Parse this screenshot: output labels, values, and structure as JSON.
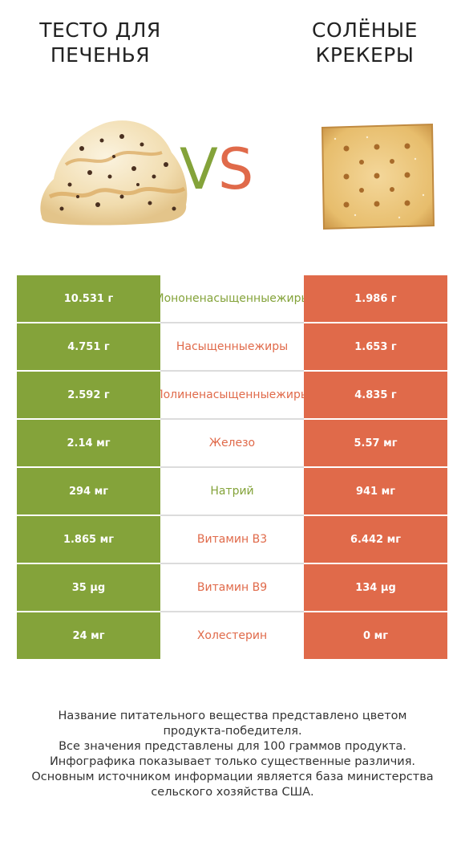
{
  "left_food": {
    "title_lines": [
      "ТЕСТО ДЛЯ",
      "ПЕЧЕНЬЯ"
    ]
  },
  "right_food": {
    "title_lines": [
      "СОЛЁНЫЕ",
      "КРЕКЕРЫ"
    ]
  },
  "vs": {
    "v": "V",
    "s": "S"
  },
  "colors": {
    "left": "#84a33a",
    "right": "#e06a4a"
  },
  "rows": [
    {
      "left": "10.531 г",
      "name_lines": [
        "Мононенасыщенные",
        "жиры"
      ],
      "right": "1.986 г",
      "winner": "left"
    },
    {
      "left": "4.751 г",
      "name_lines": [
        "Насыщенные",
        "жиры"
      ],
      "right": "1.653 г",
      "winner": "right"
    },
    {
      "left": "2.592 г",
      "name_lines": [
        "Полиненасыщенные",
        "жиры"
      ],
      "right": "4.835 г",
      "winner": "right"
    },
    {
      "left": "2.14 мг",
      "name_lines": [
        "Железо"
      ],
      "right": "5.57 мг",
      "winner": "right"
    },
    {
      "left": "294 мг",
      "name_lines": [
        "Натрий"
      ],
      "right": "941 мг",
      "winner": "left"
    },
    {
      "left": "1.865 мг",
      "name_lines": [
        "Витамин B3"
      ],
      "right": "6.442 мг",
      "winner": "right"
    },
    {
      "left": "35 µg",
      "name_lines": [
        "Витамин B9"
      ],
      "right": "134 µg",
      "winner": "right"
    },
    {
      "left": "24 мг",
      "name_lines": [
        "Холестерин"
      ],
      "right": "0 мг",
      "winner": "right"
    }
  ],
  "footer_lines": [
    "Название питательного вещества представлено цветом",
    "продукта-победителя.",
    "Все значения представлены для 100 граммов продукта.",
    "Инфографика показывает только существенные различия.",
    "Основным источником информации является база министерства",
    "сельского хозяйства США."
  ]
}
